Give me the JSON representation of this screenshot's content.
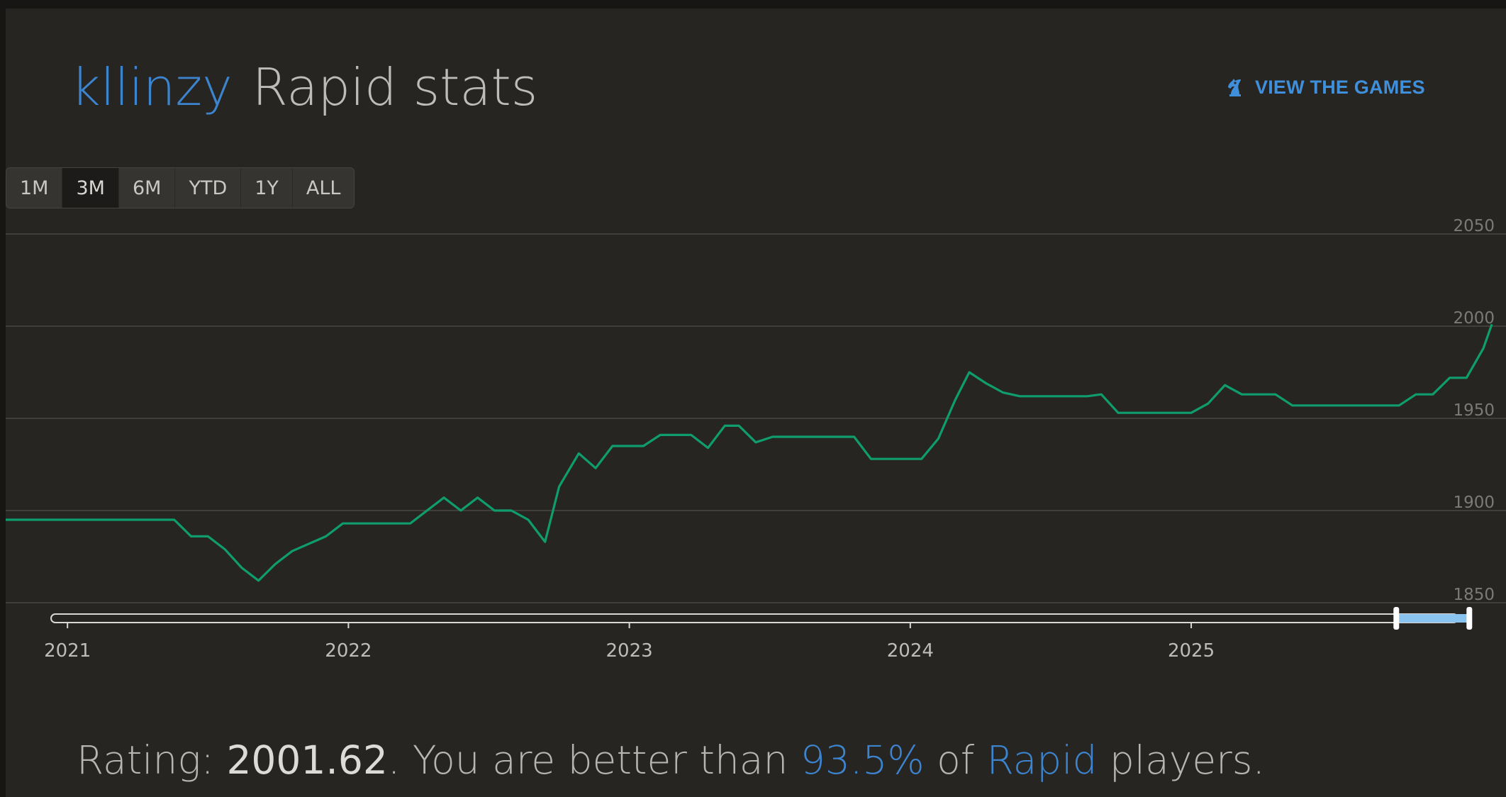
{
  "header": {
    "username": "kllinzy",
    "title_rest": "Rapid stats",
    "view_games_label": "VIEW THE GAMES",
    "view_games_icon": "knight-icon"
  },
  "range_buttons": [
    {
      "label": "1M",
      "active": false
    },
    {
      "label": "3M",
      "active": true
    },
    {
      "label": "6M",
      "active": false
    },
    {
      "label": "YTD",
      "active": false
    },
    {
      "label": "1Y",
      "active": false
    },
    {
      "label": "ALL",
      "active": false
    }
  ],
  "footer": {
    "prefix": "Rating: ",
    "rating": "2001.62",
    "middle": ". You are better than ",
    "percent": "93.5%",
    "of": " of ",
    "variant": "Rapid",
    "suffix": " players."
  },
  "chart_data": {
    "type": "line",
    "title": "",
    "xlabel": "",
    "ylabel": "",
    "ylim": [
      1850,
      2050
    ],
    "y_ticks": [
      1850,
      1900,
      1950,
      2000,
      2050
    ],
    "x_ticks": [
      "2021",
      "2022",
      "2023",
      "2024",
      "2025"
    ],
    "xlim": [
      2020.78,
      2026.07
    ],
    "grid": true,
    "legend": "none",
    "line_color": "#0f9d6e",
    "navigator_selection": {
      "start": 2025.73,
      "end": 2025.99
    },
    "series": [
      {
        "values_x": [
          2020.78,
          2021.08,
          2021.38,
          2021.44,
          2021.5,
          2021.56,
          2021.62,
          2021.68,
          2021.74,
          2021.8,
          2021.92,
          2021.98,
          2022.22,
          2022.28,
          2022.34,
          2022.4,
          2022.46,
          2022.52,
          2022.58,
          2022.64,
          2022.7,
          2022.75,
          2022.82,
          2022.88,
          2022.94,
          2023.05,
          2023.11,
          2023.17,
          2023.22,
          2023.28,
          2023.34,
          2023.39,
          2023.45,
          2023.51,
          2023.8,
          2023.86,
          2024.04,
          2024.1,
          2024.16,
          2024.21,
          2024.27,
          2024.33,
          2024.39,
          2024.63,
          2024.68,
          2024.74,
          2025.0,
          2025.06,
          2025.12,
          2025.18,
          2025.3,
          2025.36,
          2025.74,
          2025.8,
          2025.86,
          2025.92,
          2025.98,
          2026.04,
          2026.07
        ],
        "values_y": [
          1895,
          1895,
          1895,
          1886,
          1886,
          1879,
          1869,
          1862,
          1871,
          1878,
          1886,
          1893,
          1893,
          1900,
          1907,
          1900,
          1907,
          1900,
          1900,
          1895,
          1883,
          1913,
          1931,
          1923,
          1935,
          1935,
          1941,
          1941,
          1941,
          1934,
          1946,
          1946,
          1937,
          1940,
          1940,
          1928,
          1928,
          1939,
          1960,
          1975,
          1969,
          1964,
          1962,
          1962,
          1963,
          1953,
          1953,
          1958,
          1968,
          1963,
          1963,
          1957,
          1957,
          1963,
          1963,
          1972,
          1972,
          1988,
          2001
        ]
      }
    ]
  }
}
